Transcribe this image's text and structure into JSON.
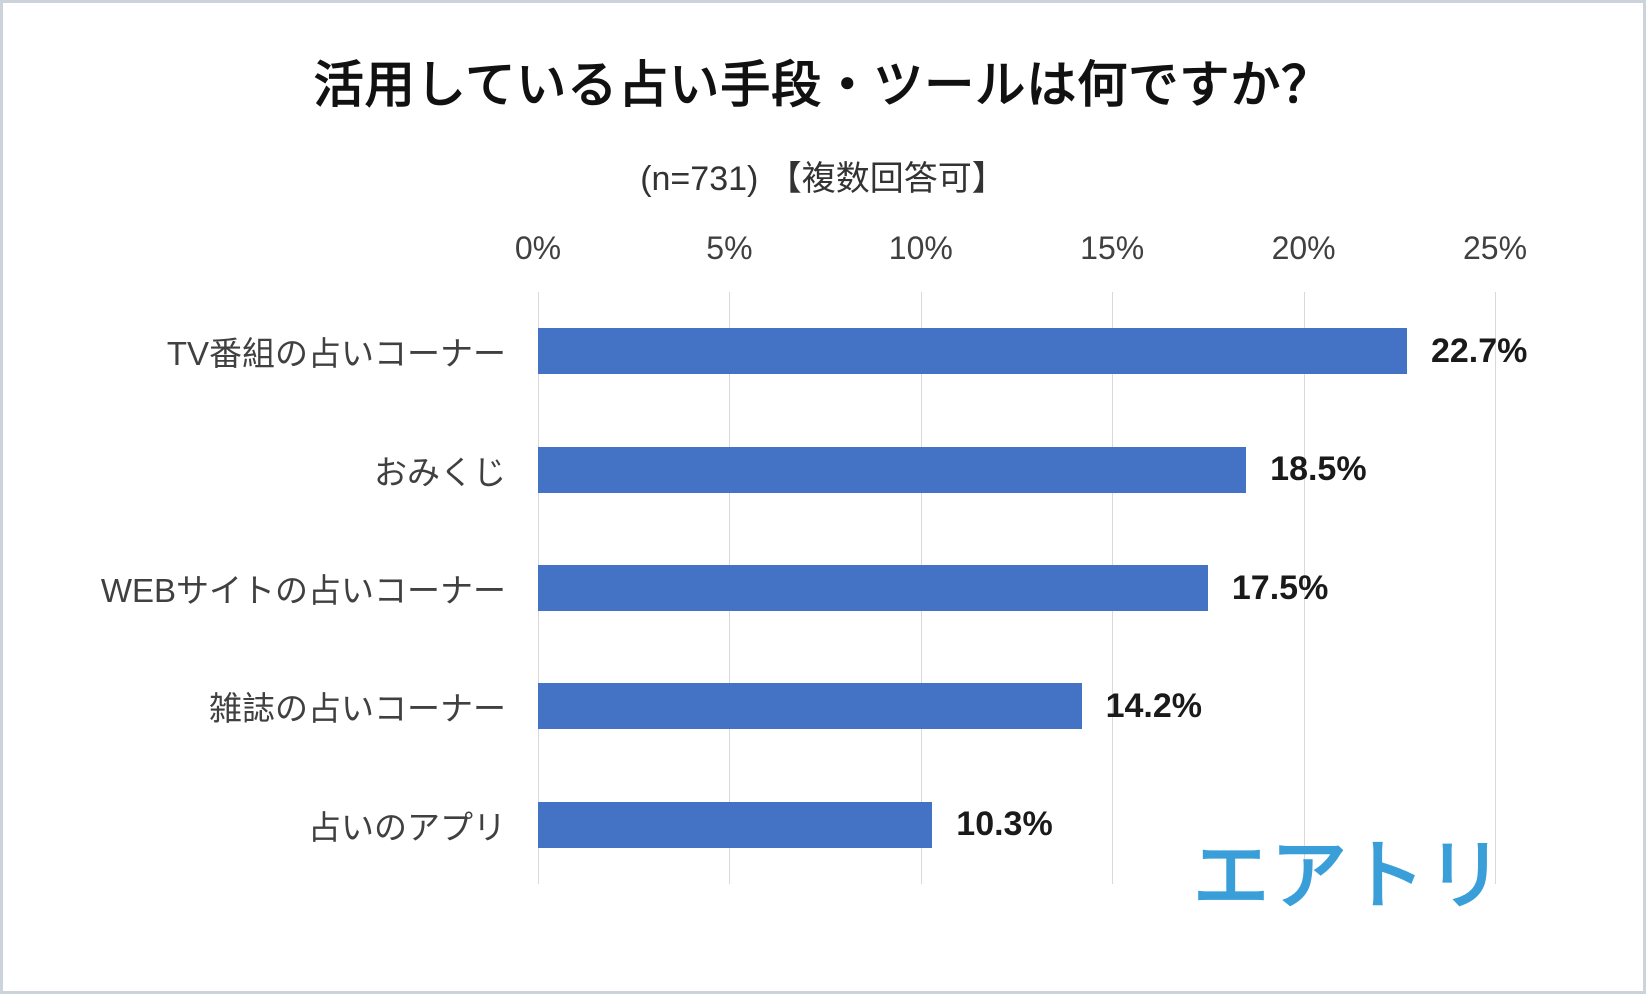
{
  "title": "活用している占い手段・ツールは何ですか？",
  "subtitle": "(n=731) 【複数回答可】",
  "logo_text": "エアトリ",
  "colors": {
    "bar": "#4472C4",
    "logo": "#3A9FD9",
    "grid": "#D9D9D9",
    "axis_text": "#404040",
    "value_text": "#1A1A1A"
  },
  "chart_data": {
    "type": "bar",
    "orientation": "horizontal",
    "title": "活用している占い手段・ツールは何ですか？",
    "subtitle": "(n=731) 【複数回答可】",
    "categories": [
      "TV番組の占いコーナー",
      "おみくじ",
      "WEBサイトの占いコーナー",
      "雑誌の占いコーナー",
      "占いのアプリ"
    ],
    "values": [
      22.7,
      18.5,
      17.5,
      14.2,
      10.3
    ],
    "value_labels": [
      "22.7%",
      "18.5%",
      "17.5%",
      "14.2%",
      "10.3%"
    ],
    "x_ticks": [
      "0%",
      "5%",
      "10%",
      "15%",
      "20%",
      "25%"
    ],
    "xlim": [
      0,
      25
    ],
    "grid": true,
    "legend": false,
    "xlabel": "",
    "ylabel": ""
  }
}
